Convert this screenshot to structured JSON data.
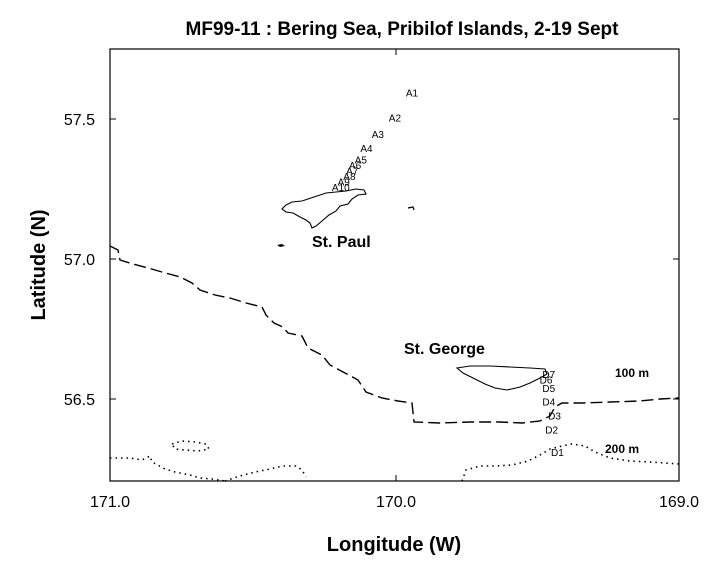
{
  "title": "MF99-11 : Bering Sea, Pribilof Islands, 2-19 Sept",
  "axes": {
    "xlabel": "Longitude (W)",
    "ylabel": "Latitude (N)",
    "x_ticks": [
      "171.0",
      "170.0",
      "169.0"
    ],
    "y_ticks": [
      "57.5",
      "57.0",
      "56.5"
    ]
  },
  "chart_data": {
    "type": "map",
    "title": "MF99-11 : Bering Sea, Pribilof Islands, 2-19 Sept",
    "xlabel": "Longitude (W)",
    "ylabel": "Latitude (N)",
    "xlim": [
      171.0,
      169.0
    ],
    "ylim": [
      56.2,
      57.75
    ],
    "islands": [
      "St. Paul",
      "St. George"
    ],
    "isobaths": [
      {
        "label": "100 m",
        "style": "dashed"
      },
      {
        "label": "200 m",
        "style": "dotted"
      }
    ],
    "stations": [
      {
        "name": "A1",
        "lon": 169.96,
        "lat": 57.58
      },
      {
        "name": "A2",
        "lon": 170.02,
        "lat": 57.49
      },
      {
        "name": "A3",
        "lon": 170.08,
        "lat": 57.43
      },
      {
        "name": "A4",
        "lon": 170.12,
        "lat": 57.38
      },
      {
        "name": "A5",
        "lon": 170.14,
        "lat": 57.34
      },
      {
        "name": "A6",
        "lon": 170.16,
        "lat": 57.32
      },
      {
        "name": "A7",
        "lon": 170.17,
        "lat": 57.3
      },
      {
        "name": "A8",
        "lon": 170.18,
        "lat": 57.28
      },
      {
        "name": "A9",
        "lon": 170.2,
        "lat": 57.26
      },
      {
        "name": "A10",
        "lon": 170.22,
        "lat": 57.24
      },
      {
        "name": "D7",
        "lon": 169.48,
        "lat": 56.57
      },
      {
        "name": "D6",
        "lon": 169.49,
        "lat": 56.55
      },
      {
        "name": "D5",
        "lon": 169.48,
        "lat": 56.52
      },
      {
        "name": "D4",
        "lon": 169.48,
        "lat": 56.47
      },
      {
        "name": "D3",
        "lon": 169.46,
        "lat": 56.42
      },
      {
        "name": "D2",
        "lon": 169.47,
        "lat": 56.37
      },
      {
        "name": "D1",
        "lon": 169.45,
        "lat": 56.29
      }
    ]
  }
}
